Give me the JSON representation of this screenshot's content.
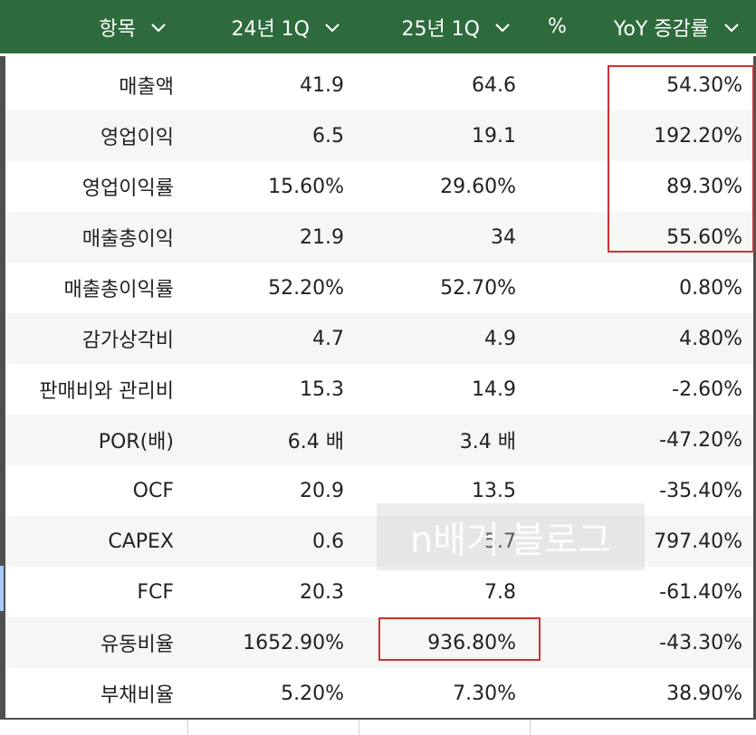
{
  "header": {
    "col_item": "항목",
    "col_24q1": "24년 1Q",
    "col_25q1": "25년 1Q",
    "col_pct_icon": "%",
    "col_yoy": "YoY 증감률"
  },
  "rows": [
    {
      "item": "매출액",
      "q24": "41.9",
      "q25": "64.6",
      "yoy": "54.30%"
    },
    {
      "item": "영업이익",
      "q24": "6.5",
      "q25": "19.1",
      "yoy": "192.20%"
    },
    {
      "item": "영업이익률",
      "q24": "15.60%",
      "q25": "29.60%",
      "yoy": "89.30%"
    },
    {
      "item": "매출총이익",
      "q24": "21.9",
      "q25": "34",
      "yoy": "55.60%"
    },
    {
      "item": "매출총이익률",
      "q24": "52.20%",
      "q25": "52.70%",
      "yoy": "0.80%"
    },
    {
      "item": "감가상각비",
      "q24": "4.7",
      "q25": "4.9",
      "yoy": "4.80%"
    },
    {
      "item": "판매비와 관리비",
      "q24": "15.3",
      "q25": "14.9",
      "yoy": "-2.60%"
    },
    {
      "item": "POR(배)",
      "q24": "6.4 배",
      "q25": "3.4 배",
      "yoy": "-47.20%"
    },
    {
      "item": "OCF",
      "q24": "20.9",
      "q25": "13.5",
      "yoy": "-35.40%"
    },
    {
      "item": "CAPEX",
      "q24": "0.6",
      "q25": "5.7",
      "yoy": "797.40%"
    },
    {
      "item": "FCF",
      "q24": "20.3",
      "q25": "7.8",
      "yoy": "-61.40%"
    },
    {
      "item": "유동비율",
      "q24": "1652.90%",
      "q25": "936.80%",
      "yoy": "-43.30%"
    },
    {
      "item": "부채비율",
      "q24": "5.20%",
      "q25": "7.30%",
      "yoy": "38.90%"
    }
  ],
  "watermark": "n배거 블로그",
  "colors": {
    "header_bg": "#2e6b3c",
    "highlight": "#d32f2f"
  }
}
